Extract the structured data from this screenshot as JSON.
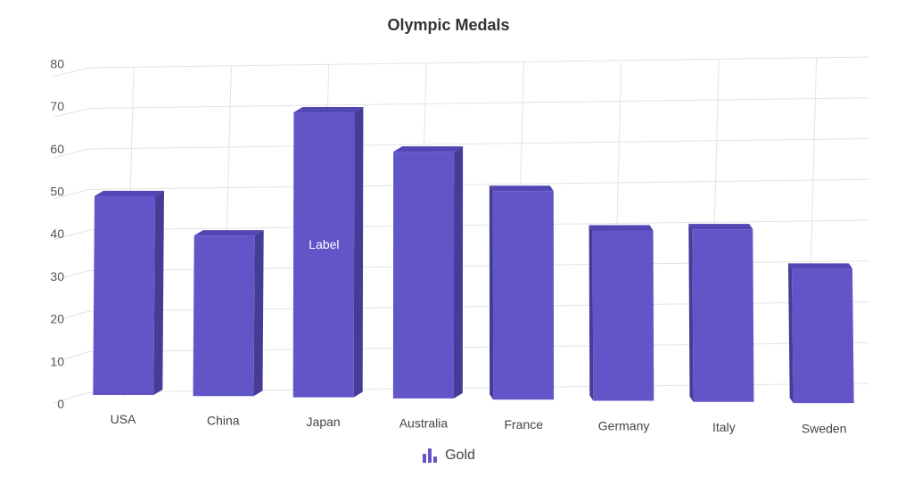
{
  "chart_data": {
    "type": "bar",
    "title": "Olympic Medals",
    "categories": [
      "USA",
      "China",
      "Japan",
      "Australia",
      "France",
      "Germany",
      "Italy",
      "Sweden"
    ],
    "series": [
      {
        "name": "Gold",
        "values": [
          50,
          40,
          70,
          60,
          50,
          40,
          40,
          30
        ],
        "color": "#6155C8"
      }
    ],
    "yticks": [
      "0",
      "10",
      "20",
      "30",
      "40",
      "50",
      "60",
      "70",
      "80"
    ],
    "ylim": [
      0,
      80
    ],
    "grid": true,
    "legend_position": "bottom-center",
    "annotation": {
      "category": "Japan",
      "text": "Label"
    },
    "colors": {
      "front": "#6155C8",
      "side": "#453C96",
      "top": "#5147B4",
      "grid": "#e4e4e4"
    }
  }
}
